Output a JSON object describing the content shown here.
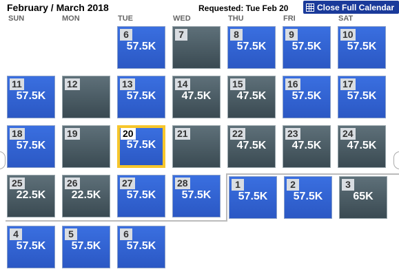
{
  "header": {
    "title": "February / March 2018",
    "requested": "Requested: Tue Feb 20",
    "close_label": "Close Full Calendar"
  },
  "weekdays": [
    "SUN",
    "MON",
    "TUE",
    "WED",
    "THU",
    "FRI",
    "SAT"
  ],
  "cells": [
    {
      "day": "6",
      "price": "57.5K",
      "style": "blue"
    },
    {
      "day": "7",
      "price": "",
      "style": "gray"
    },
    {
      "day": "8",
      "price": "57.5K",
      "style": "blue"
    },
    {
      "day": "9",
      "price": "57.5K",
      "style": "blue"
    },
    {
      "day": "10",
      "price": "57.5K",
      "style": "blue"
    },
    {
      "day": "11",
      "price": "57.5K",
      "style": "blue"
    },
    {
      "day": "12",
      "price": "",
      "style": "gray"
    },
    {
      "day": "13",
      "price": "57.5K",
      "style": "blue"
    },
    {
      "day": "14",
      "price": "47.5K",
      "style": "gray"
    },
    {
      "day": "15",
      "price": "47.5K",
      "style": "gray"
    },
    {
      "day": "16",
      "price": "57.5K",
      "style": "blue"
    },
    {
      "day": "17",
      "price": "57.5K",
      "style": "blue"
    },
    {
      "day": "18",
      "price": "57.5K",
      "style": "blue"
    },
    {
      "day": "19",
      "price": "",
      "style": "gray"
    },
    {
      "day": "20",
      "price": "57.5K",
      "style": "blue",
      "selected": true
    },
    {
      "day": "21",
      "price": "",
      "style": "gray"
    },
    {
      "day": "22",
      "price": "47.5K",
      "style": "gray"
    },
    {
      "day": "23",
      "price": "47.5K",
      "style": "gray"
    },
    {
      "day": "24",
      "price": "47.5K",
      "style": "gray"
    },
    {
      "day": "25",
      "price": "22.5K",
      "style": "gray"
    },
    {
      "day": "26",
      "price": "22.5K",
      "style": "gray"
    },
    {
      "day": "27",
      "price": "57.5K",
      "style": "blue"
    },
    {
      "day": "28",
      "price": "57.5K",
      "style": "blue"
    },
    {
      "day": "1",
      "price": "57.5K",
      "style": "blue"
    },
    {
      "day": "2",
      "price": "57.5K",
      "style": "blue"
    },
    {
      "day": "3",
      "price": "65K",
      "style": "gray"
    },
    {
      "day": "4",
      "price": "57.5K",
      "style": "blue"
    },
    {
      "day": "5",
      "price": "57.5K",
      "style": "blue"
    },
    {
      "day": "6",
      "price": "57.5K",
      "style": "blue"
    }
  ]
}
